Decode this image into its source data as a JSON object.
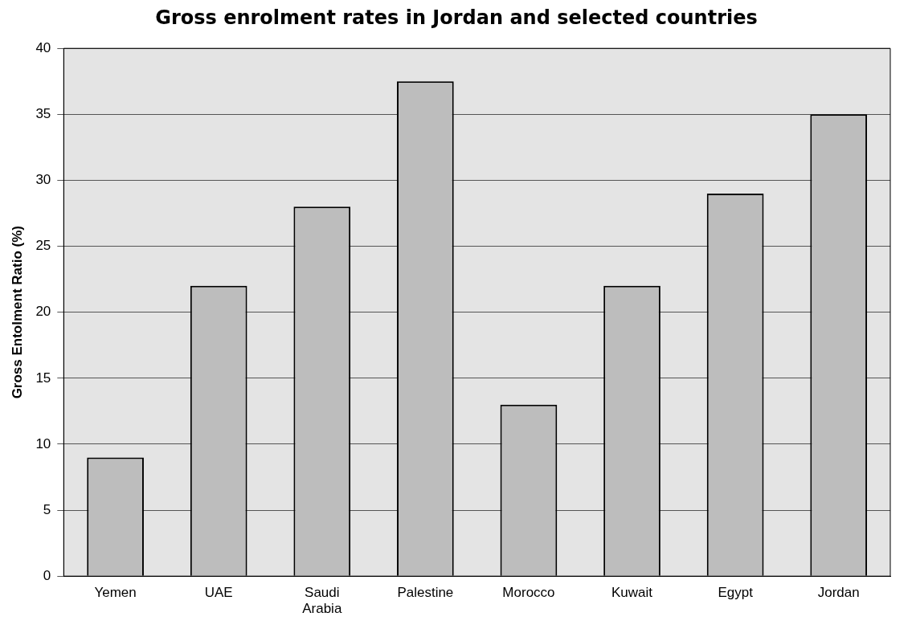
{
  "chart_data": {
    "type": "bar",
    "title": "Gross enrolment rates in Jordan and selected countries",
    "ylabel": "Gross Entolment Ratio (%)",
    "categories": [
      "Yemen",
      "UAE",
      "Saudi Arabia",
      "Palestine",
      "Morocco",
      "Kuwait",
      "Egypt",
      "Jordan"
    ],
    "values": [
      9,
      22,
      28,
      37.5,
      13,
      22,
      29,
      35
    ],
    "color": "#bdbdbd",
    "ylim": [
      0,
      40
    ],
    "yticks": [
      0,
      5,
      10,
      15,
      20,
      25,
      30,
      35,
      40
    ],
    "grid": "y",
    "legend": false
  }
}
